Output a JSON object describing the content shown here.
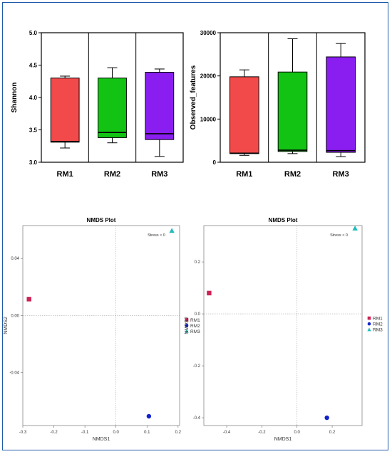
{
  "colors": {
    "frame_border": "#1e5aa8",
    "rm1": "#f24a4a",
    "rm2": "#13c313",
    "rm3": "#8a1ef0",
    "nmds_rm1": "#cc2255",
    "nmds_rm2": "#1122cc",
    "nmds_rm3": "#22bbbb"
  },
  "chart_data": [
    {
      "type": "box",
      "title": "",
      "xlabel": "",
      "ylabel": "Shannon",
      "ylim": [
        3.0,
        5.0
      ],
      "yticks": [
        "3.0",
        "3.5",
        "4.0",
        "4.5",
        "5.0"
      ],
      "categories": [
        "RM1",
        "RM2",
        "RM3"
      ],
      "boxes": [
        {
          "name": "RM1",
          "min": 3.22,
          "q1": 3.31,
          "median": 3.32,
          "q3": 4.3,
          "max": 4.33,
          "color": "#f24a4a"
        },
        {
          "name": "RM2",
          "min": 3.3,
          "q1": 3.38,
          "median": 3.46,
          "q3": 4.3,
          "max": 4.46,
          "color": "#13c313"
        },
        {
          "name": "RM3",
          "min": 3.09,
          "q1": 3.35,
          "median": 3.44,
          "q3": 4.39,
          "max": 4.44,
          "color": "#8a1ef0"
        }
      ]
    },
    {
      "type": "box",
      "title": "",
      "xlabel": "",
      "ylabel": "Observed_features",
      "ylim": [
        0,
        30000
      ],
      "yticks": [
        "0",
        "10000",
        "20000",
        "30000"
      ],
      "categories": [
        "RM1",
        "RM2",
        "RM3"
      ],
      "boxes": [
        {
          "name": "RM1",
          "min": 1600,
          "q1": 2000,
          "median": 2100,
          "q3": 19800,
          "max": 21400,
          "color": "#f24a4a"
        },
        {
          "name": "RM2",
          "min": 2000,
          "q1": 2500,
          "median": 2800,
          "q3": 20900,
          "max": 28600,
          "color": "#13c313"
        },
        {
          "name": "RM3",
          "min": 1300,
          "q1": 2300,
          "median": 2700,
          "q3": 24400,
          "max": 27500,
          "color": "#8a1ef0"
        }
      ]
    },
    {
      "type": "scatter",
      "title": "NMDS Plot",
      "xlabel": "NMDS1",
      "ylabel": "NMDS2",
      "xlim": [
        -0.3,
        0.205
      ],
      "ylim": [
        -0.077,
        0.063
      ],
      "xticks": [
        "-0.3",
        "-0.2",
        "-0.1",
        "0.0",
        "0.1",
        "0.2"
      ],
      "yticks": [
        "-0.04",
        "0.00",
        "0.04"
      ],
      "annotation": "Stress < 0",
      "legend": [
        "RM1",
        "RM2",
        "RM3"
      ],
      "legend_position": "right",
      "points": [
        {
          "name": "RM1",
          "x": -0.28,
          "y": 0.0115,
          "marker": "square"
        },
        {
          "name": "RM2",
          "x": 0.106,
          "y": -0.0705,
          "marker": "circle"
        },
        {
          "name": "RM3",
          "x": 0.18,
          "y": 0.0595,
          "marker": "triangle"
        }
      ]
    },
    {
      "type": "scatter",
      "title": "NMDS Plot",
      "xlabel": "NMDS1",
      "ylabel": "NMDS2",
      "xlim": [
        -0.53,
        0.37
      ],
      "ylim": [
        -0.43,
        0.34
      ],
      "xticks": [
        "-0.4",
        "-0.2",
        "0.0",
        "0.2"
      ],
      "yticks": [
        "-0.4",
        "-0.2",
        "0.0",
        "0.2"
      ],
      "annotation": "Stress < 0",
      "legend": [
        "RM1",
        "RM2",
        "RM3"
      ],
      "legend_position": "right",
      "points": [
        {
          "name": "RM1",
          "x": -0.5,
          "y": 0.08,
          "marker": "square"
        },
        {
          "name": "RM2",
          "x": 0.17,
          "y": -0.4,
          "marker": "circle"
        },
        {
          "name": "RM3",
          "x": 0.33,
          "y": 0.33,
          "marker": "triangle"
        }
      ]
    }
  ]
}
